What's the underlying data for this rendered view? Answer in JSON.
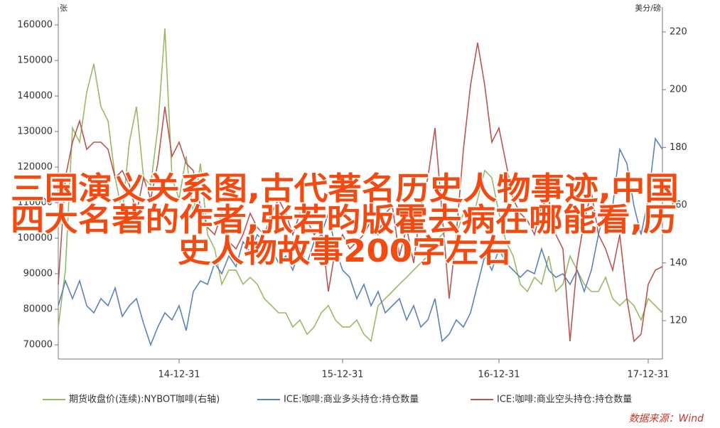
{
  "chart_data": {
    "type": "line",
    "overlay_title": [
      "三国演义关系图,古代著名历史人物事迹,中国",
      "四大名著的作者,张若昀版霍去病在哪能看,历",
      "史人物故事200字左右"
    ],
    "y_label": "张",
    "y2_label": "美分/磅",
    "source": "数据来源：Wind",
    "categories": [
      null,
      null,
      null,
      null,
      null,
      null,
      null,
      null,
      null,
      null,
      null,
      null,
      null,
      null,
      null,
      null,
      null,
      "14-12-31",
      null,
      null,
      null,
      null,
      null,
      null,
      null,
      null,
      null,
      null,
      null,
      null,
      null,
      null,
      null,
      null,
      null,
      null,
      null,
      null,
      null,
      null,
      "15-12-31",
      null,
      null,
      null,
      null,
      null,
      null,
      null,
      null,
      null,
      null,
      null,
      null,
      null,
      null,
      null,
      null,
      null,
      null,
      null,
      null,
      null,
      "16-12-31",
      null,
      null,
      null,
      null,
      null,
      null,
      null,
      null,
      null,
      null,
      null,
      null,
      null,
      null,
      null,
      null,
      null,
      null,
      null,
      null,
      "17-12-31",
      null,
      null
    ],
    "ylim": [
      66000,
      165000
    ],
    "yticks": [
      70000,
      80000,
      90000,
      100000,
      110000,
      120000,
      130000,
      140000,
      150000,
      160000
    ],
    "y2lim": [
      106.7,
      228.6
    ],
    "y2ticks": [
      120,
      140,
      160,
      180,
      200,
      220
    ],
    "series": [
      {
        "name": "期货收盘价(连续):NYBOT咖啡(右轴)",
        "color": "#9bb866",
        "axis": "y2",
        "values": [
          117.8,
          137.5,
          186.7,
          181.8,
          199.1,
          208.9,
          194.1,
          189.2,
          169.5,
          157.2,
          181.8,
          194.1,
          169.5,
          167.0,
          186.7,
          221.2,
          169.5,
          162.1,
          176.9,
          157.2,
          174.4,
          149.8,
          144.9,
          132.6,
          137.5,
          137.5,
          132.6,
          135.0,
          132.6,
          127.6,
          125.2,
          122.7,
          122.7,
          117.8,
          120.2,
          115.3,
          117.8,
          122.7,
          125.2,
          120.2,
          117.8,
          117.8,
          120.2,
          115.3,
          112.9,
          125.2,
          127.6,
          130.1,
          132.6,
          135.0,
          137.5,
          140.0,
          142.4,
          147.3,
          149.8,
          152.3,
          149.8,
          157.2,
          152.3,
          162.1,
          172.0,
          169.5,
          157.2,
          147.3,
          142.4,
          132.6,
          130.1,
          135.0,
          132.6,
          142.4,
          130.1,
          132.6,
          142.4,
          137.5,
          132.6,
          130.1,
          130.1,
          135.0,
          127.6,
          125.2,
          127.6,
          125.2,
          120.2,
          127.6,
          125.2,
          122.7
        ]
      },
      {
        "name": "ICE:咖啡:商业多头持仓:持仓数量",
        "color": "#5b83b4",
        "values": [
          81000,
          88000,
          83000,
          88000,
          81000,
          79000,
          83000,
          81000,
          86000,
          78000,
          81000,
          83000,
          76000,
          70000,
          75000,
          79000,
          77000,
          81000,
          74000,
          85000,
          88000,
          87000,
          93000,
          90000,
          95000,
          92000,
          99000,
          96000,
          101000,
          99000,
          97000,
          93000,
          95000,
          91000,
          97000,
          93000,
          99000,
          101000,
          107000,
          97000,
          91000,
          89000,
          83000,
          87000,
          81000,
          85000,
          79000,
          81000,
          83000,
          77000,
          81000,
          75000,
          77000,
          83000,
          71000,
          73000,
          77000,
          75000,
          79000,
          87000,
          95000,
          91000,
          97000,
          93000,
          91000,
          89000,
          91000,
          90000,
          97000,
          91000,
          89000,
          90000,
          87000,
          91000,
          85000,
          91000,
          101000,
          109000,
          109000,
          125000,
          121000,
          109000,
          101000,
          111000,
          128000,
          125000
        ]
      },
      {
        "name": "ICE:咖啡:商业空头持仓:持仓数量",
        "color": "#bb5552",
        "values": [
          87000,
          117000,
          127000,
          133000,
          125000,
          127000,
          127000,
          125000,
          117000,
          119000,
          115000,
          107000,
          117000,
          111000,
          121000,
          137000,
          123000,
          127000,
          121000,
          119000,
          109000,
          103000,
          101000,
          107000,
          99000,
          97000,
          101000,
          107000,
          103000,
          101000,
          107000,
          111000,
          107000,
          101000,
          107000,
          105000,
          101000,
          103000,
          85000,
          97000,
          101000,
          97000,
          99000,
          101000,
          105000,
          101000,
          107000,
          109000,
          95000,
          103000,
          93000,
          109000,
          117000,
          131000,
          107000,
          83000,
          101000,
          125000,
          143000,
          155000,
          143000,
          127000,
          131000,
          121000,
          111000,
          107000,
          105000,
          101000,
          109000,
          111000,
          101000,
          97000,
          71000,
          93000,
          105000,
          113000,
          101000,
          97000,
          91000,
          101000,
          83000,
          71000,
          73000,
          87000,
          91000,
          92000
        ]
      }
    ]
  }
}
